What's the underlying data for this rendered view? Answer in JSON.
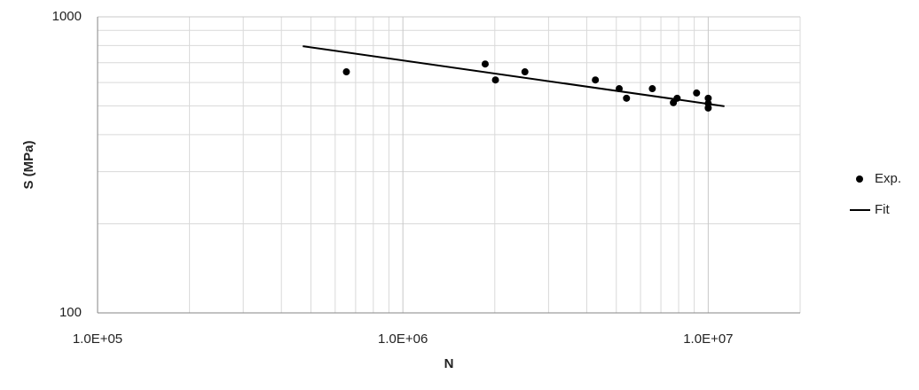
{
  "chart_data": {
    "type": "scatter",
    "xlabel": "N",
    "ylabel": "S (MPa)",
    "xscale": "log",
    "yscale": "log",
    "xlim": [
      100000,
      20000000
    ],
    "ylim": [
      100,
      1000
    ],
    "xticks": [
      {
        "value": 100000,
        "label": "1.0E+05"
      },
      {
        "value": 1000000,
        "label": "1.0E+06"
      },
      {
        "value": 10000000,
        "label": "1.0E+07"
      }
    ],
    "yticks": [
      100,
      1000
    ],
    "grid": true,
    "minor_grid": true,
    "legend": "right",
    "series": [
      {
        "name": "Exp.",
        "color": "#000000",
        "mode": "markers",
        "x": [
          653000,
          1860000,
          2010000,
          2510000,
          4270000,
          5110000,
          5400000,
          6560000,
          7690000,
          7910000,
          9160000,
          10000000,
          10000000,
          10000000
        ],
        "values": [
          652,
          693,
          612,
          652,
          612,
          572,
          531,
          572,
          513,
          531,
          553,
          531,
          510,
          492
        ]
      },
      {
        "name": "Fit",
        "color": "#000000",
        "mode": "line",
        "x": [
          470000,
          11300000
        ],
        "values": [
          796,
          499
        ]
      }
    ]
  }
}
